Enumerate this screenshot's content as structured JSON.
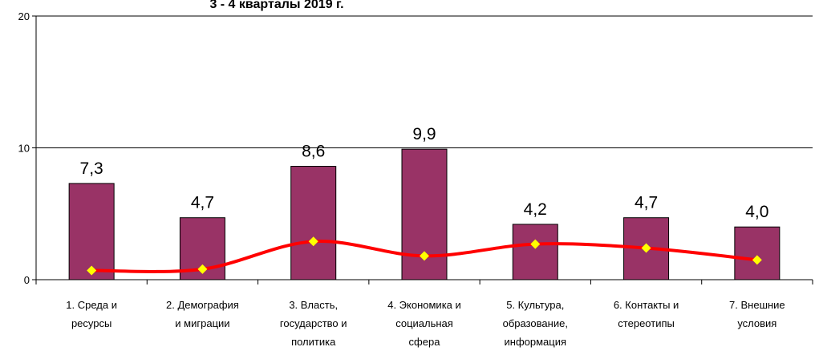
{
  "chart_data": {
    "type": "bar",
    "title": "3 - 4 кварталы 2019 г.",
    "categories": [
      [
        "1. Среда и",
        "ресурсы"
      ],
      [
        "2. Демография",
        "и миграции"
      ],
      [
        "3. Власть,",
        "государство и",
        "политика"
      ],
      [
        "4. Экономика и",
        "социальная",
        "сфера"
      ],
      [
        "5. Культура,",
        "образование,",
        "информация"
      ],
      [
        "6. Контакты и",
        "стереотипы"
      ],
      [
        "7. Внешние",
        "условия"
      ]
    ],
    "series": [
      {
        "type": "bar",
        "color": "#993366",
        "values": [
          7.3,
          4.7,
          8.6,
          9.9,
          4.2,
          4.7,
          4.0
        ],
        "value_labels": [
          "7,3",
          "4,7",
          "8,6",
          "9,9",
          "4,2",
          "4,7",
          "4,0"
        ]
      },
      {
        "type": "line",
        "color": "#ff0000",
        "marker_color": "#ffff00",
        "values": [
          0.7,
          0.8,
          2.9,
          1.8,
          2.7,
          2.4,
          1.5
        ]
      }
    ],
    "ylim": [
      0,
      20
    ],
    "yticks": [
      0,
      10,
      20
    ],
    "grid": true
  }
}
